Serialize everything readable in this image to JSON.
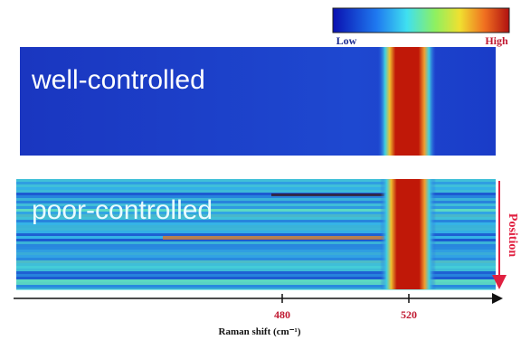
{
  "colorbar": {
    "low": "Low",
    "high": "High"
  },
  "panels": [
    {
      "label": "well-controlled"
    },
    {
      "label": "poor-controlled"
    }
  ],
  "position_label": "Position",
  "x_axis": {
    "label": "Raman shift (cm⁻¹)",
    "ticks": [
      480,
      520
    ]
  }
}
